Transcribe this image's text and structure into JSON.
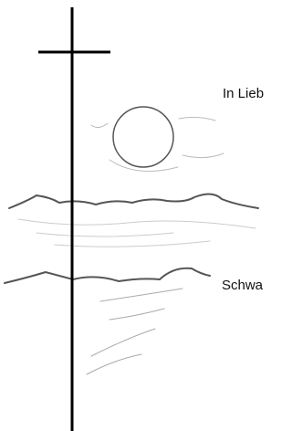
{
  "texts": {
    "line_1": "In Lieb",
    "line_2": "Schwa"
  }
}
